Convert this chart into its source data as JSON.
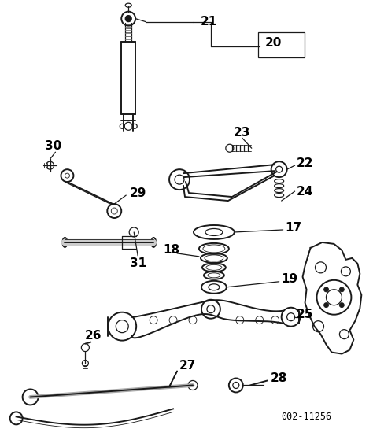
{
  "part_number": "002-11256",
  "bg_color": "#ffffff",
  "line_color": "#1a1a1a",
  "text_color": "#000000",
  "figsize": [
    4.74,
    5.59
  ],
  "dpi": 100
}
